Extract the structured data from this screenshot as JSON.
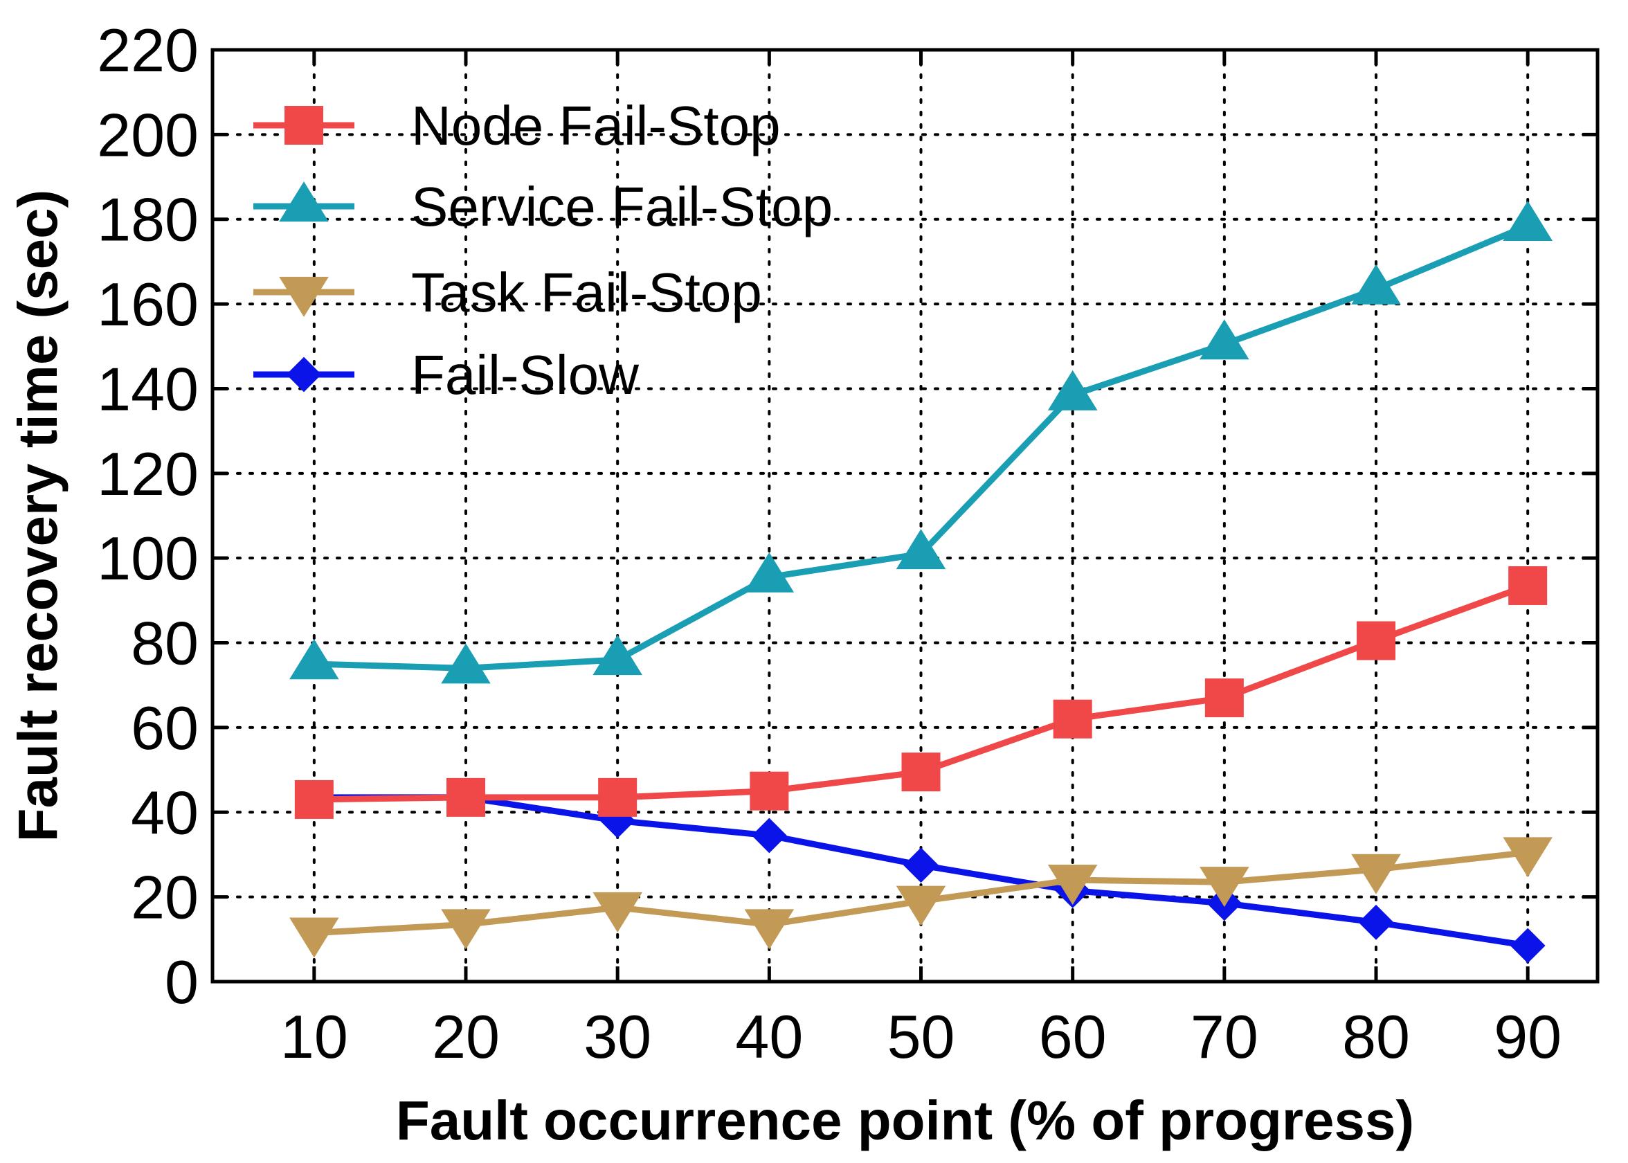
{
  "chart_data": {
    "type": "line",
    "title": "",
    "xlabel": "Fault occurrence point (% of progress)",
    "ylabel": "Fault recovery time (sec)",
    "x": [
      10,
      20,
      30,
      40,
      50,
      60,
      70,
      80,
      90
    ],
    "xticks": [
      "10",
      "20",
      "30",
      "40",
      "50",
      "60",
      "70",
      "80",
      "90"
    ],
    "yticks": [
      "0",
      "20",
      "40",
      "60",
      "80",
      "100",
      "120",
      "140",
      "160",
      "180",
      "200",
      "220"
    ],
    "xlim": [
      3.3,
      94.6
    ],
    "ylim": [
      0,
      220
    ],
    "grid": true,
    "legend_position": "top-left",
    "series": [
      {
        "name": "Node Fail-Stop",
        "marker": "square",
        "color": "#f04848",
        "values": [
          43,
          43.5,
          43.5,
          45,
          49.5,
          62,
          67,
          80.5,
          93.5
        ]
      },
      {
        "name": "Service Fail-Stop",
        "marker": "triangle-up",
        "color": "#1a9eb4",
        "values": [
          75,
          74,
          76,
          95.5,
          101,
          138.5,
          150.5,
          163.5,
          178.5
        ]
      },
      {
        "name": "Task Fail-Stop",
        "marker": "triangle-down",
        "color": "#c29a55",
        "values": [
          11.5,
          13.5,
          17.5,
          13.5,
          19,
          24,
          23.5,
          26.5,
          30.5
        ]
      },
      {
        "name": "Fail-Slow",
        "marker": "diamond",
        "color": "#0a14e8",
        "values": [
          43.5,
          43.5,
          38,
          34.5,
          27.5,
          21.5,
          18.5,
          14,
          8.5
        ]
      }
    ]
  }
}
